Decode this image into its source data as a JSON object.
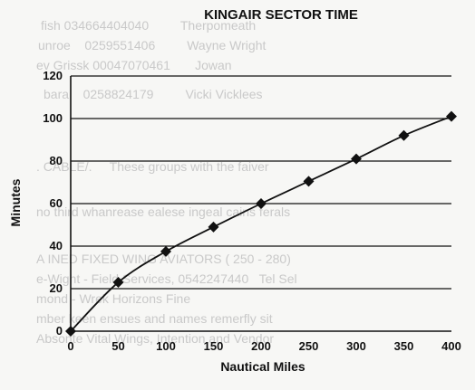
{
  "chart_data": {
    "type": "line",
    "title": "KINGAIR SECTOR TIME",
    "xlabel": "Nautical Miles",
    "ylabel": "Minutes",
    "xlim": [
      0,
      400
    ],
    "ylim": [
      0,
      120
    ],
    "x_ticks": [
      0,
      50,
      100,
      150,
      200,
      250,
      300,
      350,
      400
    ],
    "y_ticks": [
      0,
      20,
      40,
      60,
      80,
      100,
      120
    ],
    "grid": "horizontal",
    "legend": "none",
    "series": [
      {
        "x": [
          0,
          50,
          100,
          150,
          200,
          250,
          300,
          350,
          400
        ],
        "y": [
          0,
          23,
          37.5,
          49,
          60,
          70.5,
          81,
          92,
          101
        ],
        "marker": "diamond",
        "color": "#111111"
      }
    ]
  }
}
